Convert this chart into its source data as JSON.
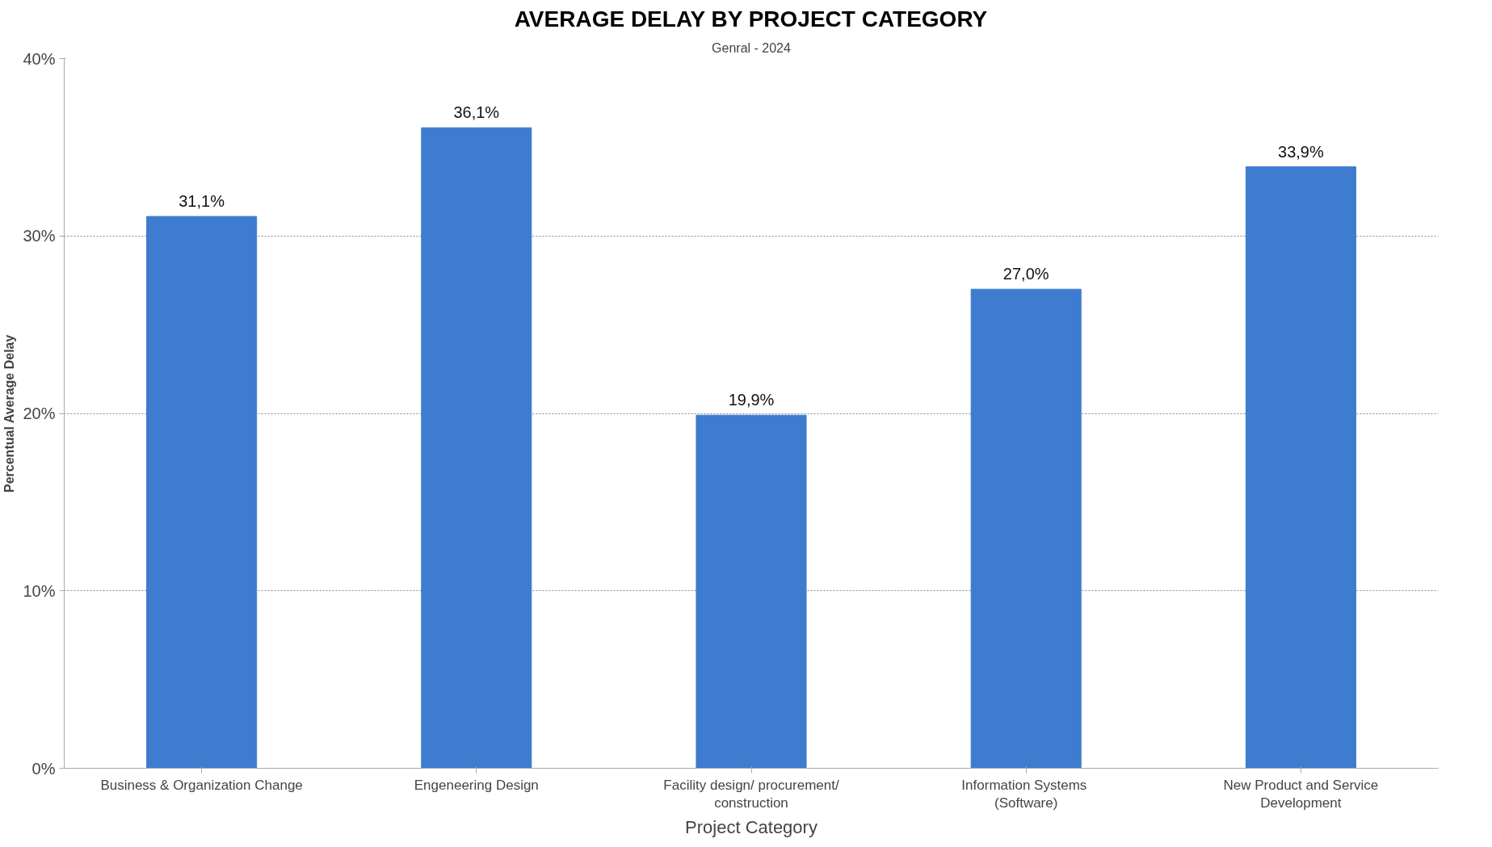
{
  "chart_data": {
    "type": "bar",
    "title": "AVERAGE DELAY BY PROJECT CATEGORY",
    "subtitle": "Genral - 2024",
    "xlabel": "Project Category",
    "ylabel": "Percentual Average Delay",
    "categories": [
      "Business & Organization Change",
      "Engeneering Design",
      "Facility design/ procurement/ construction",
      "Information  Systems (Software)",
      "New Product and Service Development"
    ],
    "values": [
      31.1,
      36.1,
      19.9,
      27.0,
      33.9
    ],
    "value_labels": [
      "31,1%",
      "36,1%",
      "19,9%",
      "27,0%",
      "33,9%"
    ],
    "color": "#3d7ccf",
    "ylim": [
      0,
      40
    ],
    "yticks": [
      {
        "value": 0,
        "label": "0%"
      },
      {
        "value": 10,
        "label": "10%"
      },
      {
        "value": 20,
        "label": "20%"
      },
      {
        "value": 30,
        "label": "30%"
      },
      {
        "value": 40,
        "label": "40%"
      }
    ],
    "grid": "y"
  }
}
